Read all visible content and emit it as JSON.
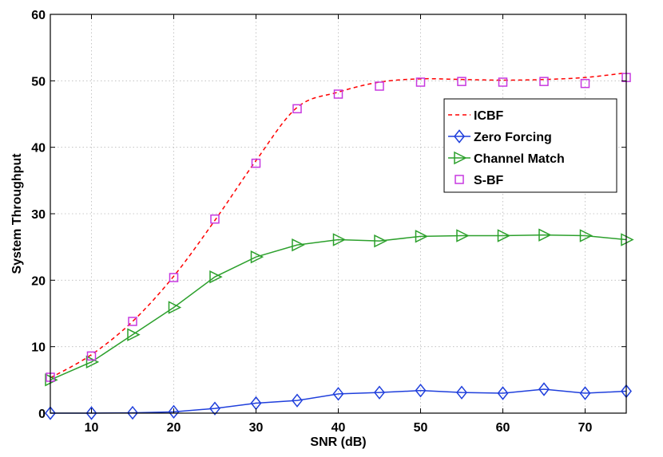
{
  "chart_data": {
    "type": "line",
    "title": "",
    "xlabel": "SNR (dB)",
    "ylabel": "System Throughput",
    "xlim": [
      5,
      75
    ],
    "ylim": [
      0,
      60
    ],
    "grid": true,
    "xticks": [
      10,
      20,
      30,
      40,
      50,
      60,
      70
    ],
    "yticks": [
      0,
      10,
      20,
      30,
      40,
      50,
      60
    ],
    "legend_position": "upper-right",
    "x": [
      5,
      10,
      15,
      20,
      25,
      30,
      35,
      40,
      45,
      50,
      55,
      60,
      65,
      70,
      75
    ],
    "series": [
      {
        "name": "ICBF",
        "style": "dashed",
        "marker": "none",
        "color": "#ff0000",
        "values": [
          5.3,
          8.8,
          13.8,
          20.6,
          29.0,
          38.0,
          46.0,
          48.3,
          49.8,
          50.3,
          50.2,
          50.1,
          50.2,
          50.5,
          51.2
        ]
      },
      {
        "name": "Zero Forcing",
        "style": "solid",
        "marker": "diamond",
        "color": "#1f3fdc",
        "values": [
          0.0,
          0.0,
          0.05,
          0.2,
          0.7,
          1.5,
          1.9,
          2.9,
          3.1,
          3.4,
          3.1,
          3.0,
          3.6,
          3.0,
          3.3
        ]
      },
      {
        "name": "Channel Match",
        "style": "solid",
        "marker": "triangle-right",
        "color": "#2ca02c",
        "values": [
          5.0,
          7.7,
          11.8,
          15.9,
          20.5,
          23.5,
          25.3,
          26.1,
          25.9,
          26.6,
          26.7,
          26.7,
          26.8,
          26.7,
          26.1
        ]
      },
      {
        "name": "S-BF",
        "style": "none",
        "marker": "square",
        "color": "#c738e0",
        "values": [
          5.4,
          8.6,
          13.8,
          20.4,
          29.2,
          37.6,
          45.8,
          48.0,
          49.2,
          49.8,
          49.9,
          49.8,
          49.9,
          49.6,
          50.5
        ]
      }
    ]
  }
}
